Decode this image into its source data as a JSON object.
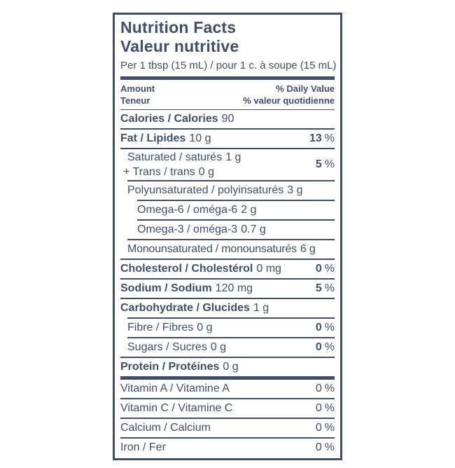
{
  "colors": {
    "ink": "#3F4E6B",
    "bg": "#FFFFFF"
  },
  "percent_symbol": "%",
  "title": {
    "en": "Nutrition Facts",
    "fr": "Valeur nutritive"
  },
  "serving": "Per 1 tbsp (15 mL) / pour 1 c. à soupe (15 mL)",
  "header": {
    "amount_en": "Amount",
    "amount_fr": "Teneur",
    "daily_value_en": "% Daily Value",
    "daily_value_fr": "% valeur quotidienne"
  },
  "rows": {
    "calories": {
      "label": "Calories / Calories",
      "amount": "90"
    },
    "fat": {
      "label": "Fat / Lipides",
      "amount": "10 g",
      "dv": "13"
    },
    "saturated": {
      "label": "Saturated / saturés",
      "amount": "1 g"
    },
    "trans": {
      "label": "+ Trans / trans",
      "amount": "0 g"
    },
    "sat_trans": {
      "dv": "5"
    },
    "polyunsaturated": {
      "label": "Polyunsaturated / polyinsaturés",
      "amount": "3 g"
    },
    "omega6": {
      "label": "Omega-6 / oméga-6",
      "amount": "2 g"
    },
    "omega3": {
      "label": "Omega-3 / oméga-3",
      "amount": "0.7 g"
    },
    "monounsaturated": {
      "label": "Monounsaturated / monounsaturés",
      "amount": "6 g"
    },
    "cholesterol": {
      "label": "Cholesterol / Cholestérol",
      "amount": "0 mg",
      "dv": "0"
    },
    "sodium": {
      "label": "Sodium / Sodium",
      "amount": "120 mg",
      "dv": "5"
    },
    "carbohydrate": {
      "label": "Carbohydrate / Glucides",
      "amount": "1 g"
    },
    "fibre": {
      "label": "Fibre / Fibres",
      "amount": "0 g",
      "dv": "0"
    },
    "sugars": {
      "label": "Sugars / Sucres",
      "amount": "0 g",
      "dv": "0"
    },
    "protein": {
      "label": "Protein / Protéines",
      "amount": "0 g"
    },
    "vitamin_a": {
      "label": "Vitamin A / Vitamine A",
      "dv": "0"
    },
    "vitamin_c": {
      "label": "Vitamin C / Vitamine C",
      "dv": "0"
    },
    "calcium": {
      "label": "Calcium / Calcium",
      "dv": "0"
    },
    "iron": {
      "label": "Iron / Fer",
      "dv": "0"
    }
  }
}
